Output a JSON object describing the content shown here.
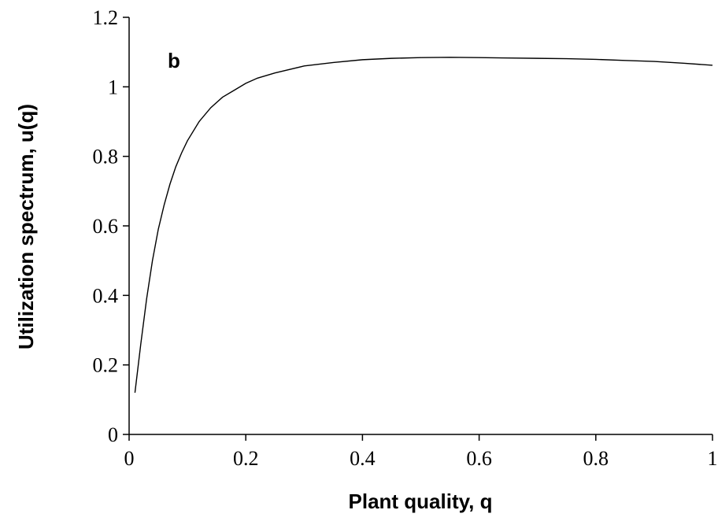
{
  "chart_data": {
    "type": "line",
    "panel_label": "b",
    "xlabel": "Plant quality, q",
    "ylabel": "Utilization spectrum, u(q)",
    "xlim": [
      0,
      1
    ],
    "ylim": [
      0,
      1.2
    ],
    "xticks": [
      0,
      0.2,
      0.4,
      0.6,
      0.8,
      1
    ],
    "xtick_labels": [
      "0",
      "0.2",
      "0.4",
      "0.6",
      "0.8",
      "1"
    ],
    "yticks": [
      0,
      0.2,
      0.4,
      0.6,
      0.8,
      1,
      1.2
    ],
    "ytick_labels": [
      "0",
      "0.2",
      "0.4",
      "0.6",
      "0.8",
      "1",
      "1.2"
    ],
    "grid": false,
    "legend": "none",
    "series": [
      {
        "color": "#000000",
        "x": [
          0.01,
          0.02,
          0.03,
          0.04,
          0.05,
          0.06,
          0.07,
          0.08,
          0.09,
          0.1,
          0.12,
          0.14,
          0.16,
          0.18,
          0.2,
          0.22,
          0.25,
          0.3,
          0.35,
          0.4,
          0.45,
          0.5,
          0.55,
          0.6,
          0.65,
          0.7,
          0.75,
          0.8,
          0.85,
          0.9,
          0.95,
          1.0
        ],
        "y": [
          0.12,
          0.26,
          0.39,
          0.5,
          0.59,
          0.66,
          0.72,
          0.77,
          0.81,
          0.845,
          0.9,
          0.94,
          0.97,
          0.99,
          1.01,
          1.025,
          1.04,
          1.06,
          1.07,
          1.078,
          1.082,
          1.084,
          1.085,
          1.084,
          1.083,
          1.082,
          1.081,
          1.079,
          1.076,
          1.073,
          1.068,
          1.062
        ]
      }
    ]
  }
}
